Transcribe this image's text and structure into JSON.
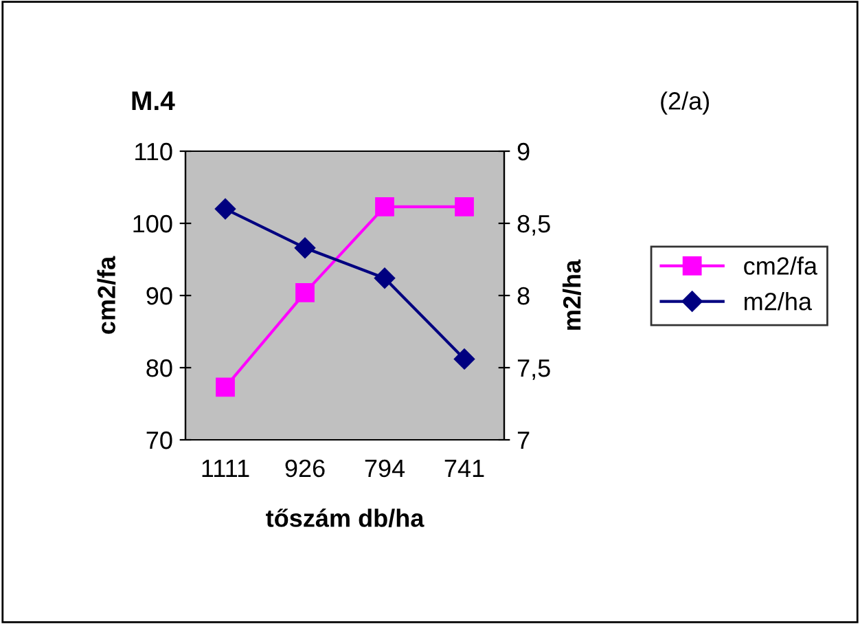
{
  "chart_data": {
    "type": "line",
    "title": "M.4",
    "subtitle": "(2/a)",
    "xlabel": "tőszám db/ha",
    "ylabel": "cm2/fa",
    "y2label": "m2/ha",
    "categories": [
      "1111",
      "926",
      "794",
      "741"
    ],
    "series": [
      {
        "name": "cm2/fa",
        "color": "#ff00ff",
        "marker": "square",
        "values": [
          77.3,
          90.4,
          102.3,
          102.3
        ]
      },
      {
        "name": "m2/ha",
        "color": "#000080",
        "marker": "diamond",
        "axis": "y2",
        "values": [
          8.6,
          8.33,
          8.12,
          7.56
        ]
      }
    ],
    "ylim": [
      70,
      110
    ],
    "yticks": [
      70,
      80,
      90,
      100,
      110
    ],
    "y2lim": [
      7,
      9
    ],
    "y2ticks": [
      7,
      {
        "value": 7.5,
        "label": "7,5"
      },
      8,
      {
        "value": 8.5,
        "label": "8,5"
      },
      9
    ],
    "grid": false,
    "legend": "right",
    "line_style": "solid"
  }
}
